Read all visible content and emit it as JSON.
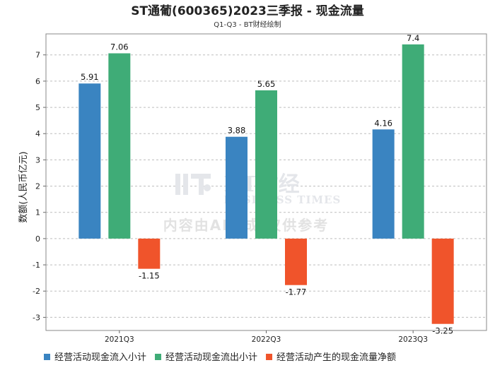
{
  "chart_data": {
    "type": "bar",
    "title": "ST通葡(600365)2023三季报 - 现金流量",
    "subtitle": "Q1-Q3 - BT财经绘制",
    "ylabel": "数额(人民币亿元)",
    "xlabel": "",
    "categories": [
      "2021Q3",
      "2022Q3",
      "2023Q3"
    ],
    "ylim": [
      -3.5,
      7.8
    ],
    "yticks": [
      -3,
      -2,
      -1,
      0,
      1,
      2,
      3,
      4,
      5,
      6,
      7
    ],
    "grid": true,
    "legend_position": "bottom",
    "series": [
      {
        "name": "经营活动现金流入小计",
        "color": "#3a84c1",
        "values": [
          5.91,
          3.88,
          4.16
        ],
        "labels": [
          "5.91",
          "3.88",
          "4.16"
        ]
      },
      {
        "name": "经营活动现金流出小计",
        "color": "#3fac77",
        "values": [
          7.06,
          5.65,
          7.4
        ],
        "labels": [
          "7.06",
          "5.65",
          "7.4"
        ]
      },
      {
        "name": "经营活动产生的现金流量净额",
        "color": "#f0542b",
        "values": [
          -1.15,
          -1.77,
          -3.25
        ],
        "labels": [
          "-1.15",
          "-1.77",
          "-3.25"
        ]
      }
    ]
  },
  "watermark": {
    "brand": "BT财经",
    "sub": "BUSINESS TIMES",
    "note": "内容由AI生成,仅供参考"
  }
}
